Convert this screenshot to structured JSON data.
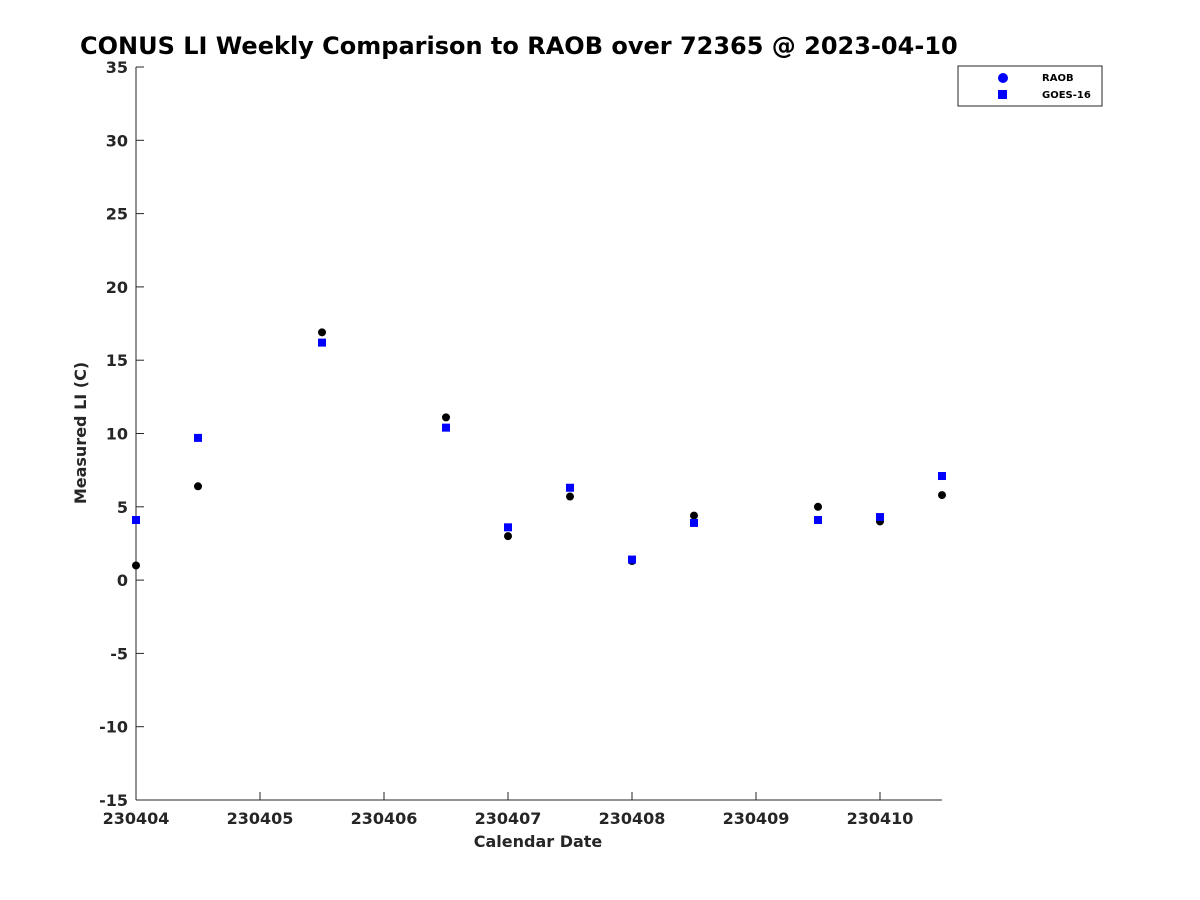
{
  "chart_data": {
    "type": "scatter",
    "title": "CONUS LI Weekly Comparison to RAOB over 72365 @ 2023-04-10",
    "xlabel": "Calendar Date",
    "ylabel": "Measured LI (C)",
    "xlim": [
      230404,
      230410.5
    ],
    "ylim": [
      -15,
      35
    ],
    "xticks": [
      230404,
      230405,
      230406,
      230407,
      230408,
      230409,
      230410
    ],
    "xtick_labels": [
      "230404",
      "230405",
      "230406",
      "230407",
      "230408",
      "230409",
      "230410"
    ],
    "yticks": [
      -15,
      -10,
      -5,
      0,
      5,
      10,
      15,
      20,
      25,
      30,
      35
    ],
    "ytick_labels": [
      "-15",
      "-10",
      "-5",
      "0",
      "5",
      "10",
      "15",
      "20",
      "25",
      "30",
      "35"
    ],
    "grid": false,
    "legend_position": "top-right",
    "series": [
      {
        "name": "RAOB",
        "marker": "circle",
        "legend_color": "#0000ff",
        "point_color": "#000000",
        "x": [
          230404,
          230404.5,
          230405.5,
          230406.5,
          230407,
          230407.5,
          230408,
          230408.5,
          230409.5,
          230410,
          230410.5
        ],
        "y": [
          1.0,
          6.4,
          16.9,
          11.1,
          3.0,
          5.7,
          1.3,
          4.4,
          5.0,
          4.0,
          5.8
        ]
      },
      {
        "name": "GOES-16",
        "marker": "square",
        "legend_color": "#0000ff",
        "point_color": "#0000ff",
        "x": [
          230404,
          230404.5,
          230405.5,
          230406.5,
          230407,
          230407.5,
          230408,
          230408.5,
          230409.5,
          230410,
          230410.5
        ],
        "y": [
          4.1,
          9.7,
          16.2,
          10.4,
          3.6,
          6.3,
          1.4,
          3.9,
          4.1,
          4.3,
          7.1
        ]
      }
    ]
  }
}
